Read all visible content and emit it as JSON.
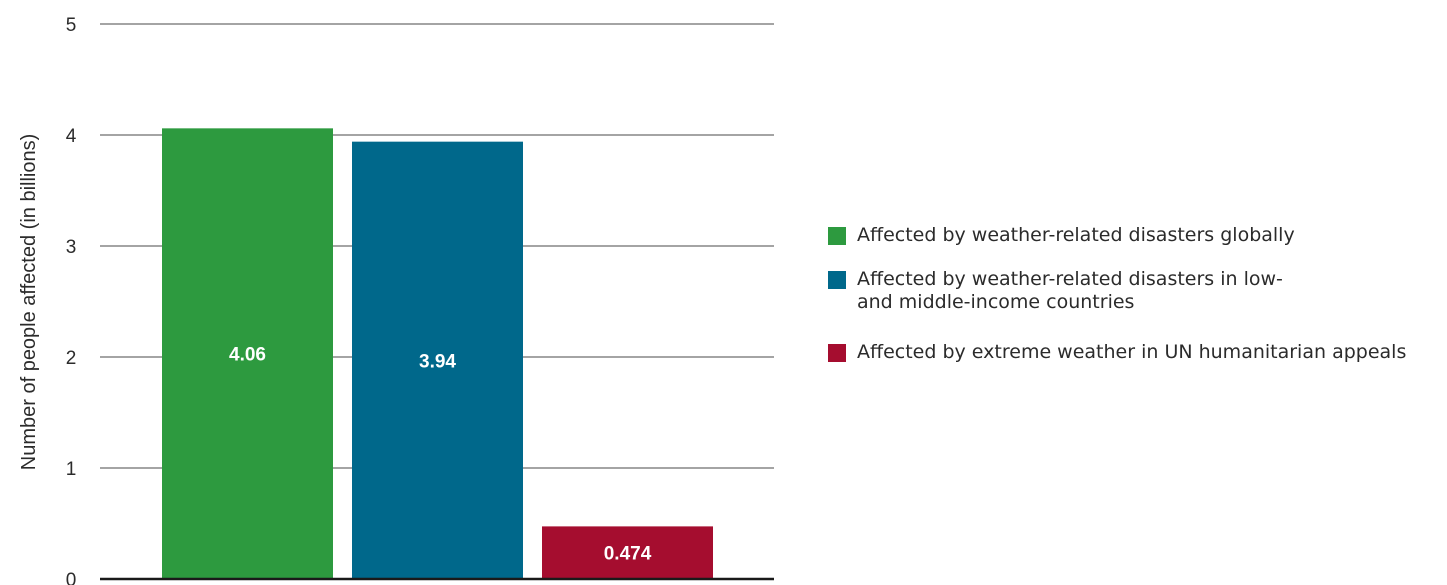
{
  "chart_data": {
    "type": "bar",
    "ylabel": "Number of people affected (in billions)",
    "ylim": [
      0,
      5
    ],
    "yticks": [
      0,
      1,
      2,
      3,
      4,
      5
    ],
    "grid": true,
    "legend_position": "right",
    "series": [
      {
        "name": "Affected by weather-related disasters globally",
        "value": 4.06,
        "label": "4.06",
        "color": "#2d9a3f"
      },
      {
        "name": "Affected by weather-related disasters in low-\nand middle-income countries",
        "value": 3.94,
        "label": "3.94",
        "color": "#00688b"
      },
      {
        "name": "Affected by extreme weather in UN humanitarian appeals",
        "value": 0.474,
        "label": "0.474",
        "color": "#a50d2f"
      }
    ]
  }
}
